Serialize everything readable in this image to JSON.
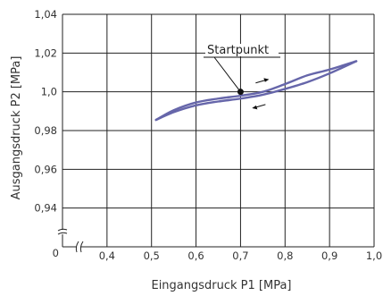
{
  "chart_data": {
    "type": "line",
    "xlabel": "Eingangsdruck  P1  [MPa]",
    "ylabel": "Ausgangsdruck  P2  [MPa]",
    "xlim": [
      0.3,
      1.0
    ],
    "ylim": [
      0.92,
      1.04
    ],
    "x_ticks": [
      {
        "value": 0.4,
        "label": "0,4"
      },
      {
        "value": 0.5,
        "label": "0,5"
      },
      {
        "value": 0.6,
        "label": "0,6"
      },
      {
        "value": 0.7,
        "label": "0,7"
      },
      {
        "value": 0.8,
        "label": "0,8"
      },
      {
        "value": 0.9,
        "label": "0,9"
      },
      {
        "value": 1.0,
        "label": "1,0"
      }
    ],
    "y_ticks": [
      {
        "value": 0.94,
        "label": "0,94"
      },
      {
        "value": 0.96,
        "label": "0,96"
      },
      {
        "value": 0.98,
        "label": "0,98"
      },
      {
        "value": 1.0,
        "label": "1,0"
      },
      {
        "value": 1.02,
        "label": "1,02"
      },
      {
        "value": 1.04,
        "label": "1,04"
      }
    ],
    "origin_label": "0",
    "axis_breaks": true,
    "grid": true,
    "series": [
      {
        "x": [
          0.51,
          0.55,
          0.6,
          0.65,
          0.7,
          0.75,
          0.8,
          0.85,
          0.9,
          0.96
        ],
        "y": [
          0.9855,
          0.9905,
          0.9945,
          0.9965,
          0.998,
          1.0,
          1.004,
          1.0085,
          1.0115,
          1.0158
        ]
      },
      {
        "x": [
          0.51,
          0.55,
          0.6,
          0.65,
          0.7,
          0.75,
          0.8,
          0.85,
          0.9,
          0.96
        ],
        "y": [
          0.9855,
          0.9895,
          0.993,
          0.995,
          0.9965,
          0.9985,
          1.0015,
          1.005,
          1.0095,
          1.0158
        ]
      }
    ],
    "annotations": [
      {
        "text": "Startpunkt",
        "point": {
          "x": 0.7,
          "y": 1.0
        }
      }
    ],
    "colors": {
      "curve": "#6666aa",
      "grid": "#222222",
      "point": "#111111"
    }
  }
}
